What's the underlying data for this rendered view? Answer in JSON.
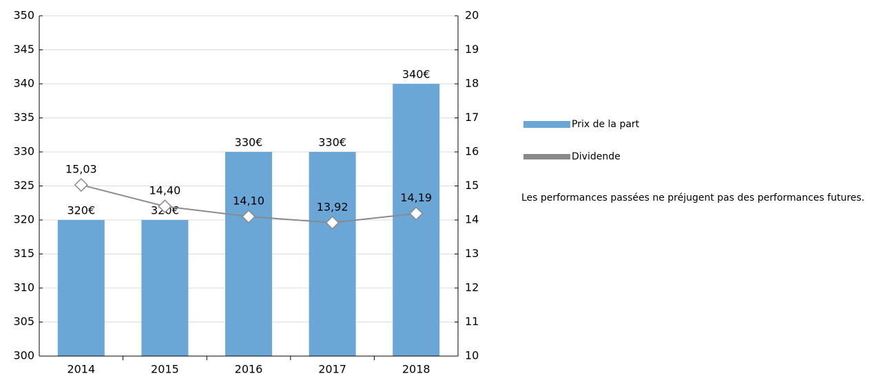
{
  "chart_data": {
    "type": "bar",
    "categories": [
      "2014",
      "2015",
      "2016",
      "2017",
      "2018"
    ],
    "series": [
      {
        "name": "Prix de la part",
        "color": "#6aa7d7",
        "values": [
          320,
          320,
          330,
          330,
          340
        ],
        "value_labels": [
          "320€",
          "320€",
          "330€",
          "330€",
          "340€"
        ]
      },
      {
        "name": "Dividende",
        "type": "line",
        "axis": "y2",
        "color": "#8a8a8a",
        "values": [
          15.03,
          14.4,
          14.1,
          13.92,
          14.19
        ],
        "value_labels": [
          "15,03",
          "14,40",
          "14,10",
          "13,92",
          "14,19"
        ]
      }
    ],
    "ylim": [
      300,
      350
    ],
    "yticks": [
      300,
      305,
      310,
      315,
      320,
      325,
      330,
      335,
      340,
      345,
      350
    ],
    "y2lim": [
      10,
      20
    ],
    "y2ticks": [
      10,
      11,
      12,
      13,
      14,
      15,
      16,
      17,
      18,
      19,
      20
    ],
    "grid": true,
    "note": "Les performances passées ne préjugent pas des performances futures."
  }
}
